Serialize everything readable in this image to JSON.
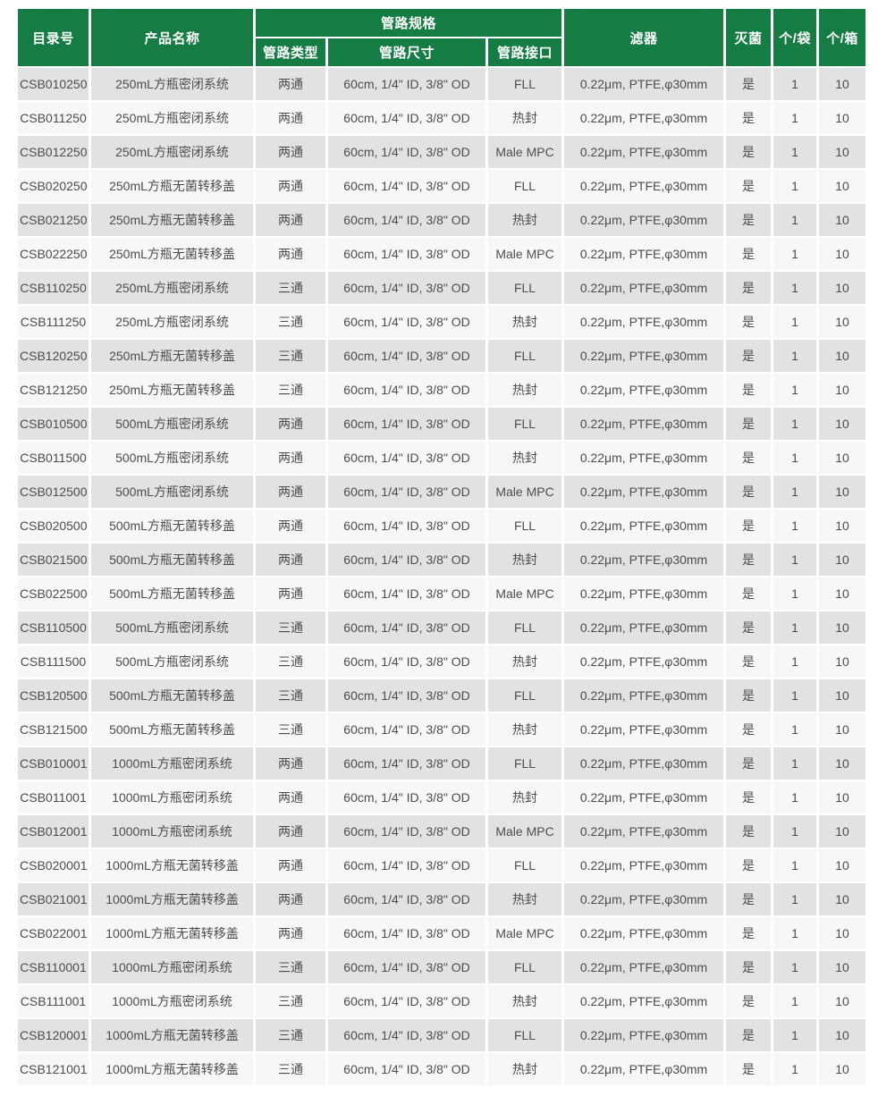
{
  "colors": {
    "header_green": "#157d43",
    "row_odd": "#e2e2e2",
    "row_even": "#f7f7f7",
    "body_text": "#4d4d4d",
    "header_text": "#ffffff"
  },
  "table": {
    "header": {
      "catalog": "目录号",
      "product_name": "产品名称",
      "tubing_spec_group": "管路规格",
      "tubing_type": "管路类型",
      "tubing_size": "管路尺寸",
      "tubing_interface": "管路接口",
      "filter": "滤器",
      "sterilized": "灭菌",
      "pcs_per_bag": "个/袋",
      "pcs_per_box": "个/箱"
    },
    "column_keys": [
      "catalog",
      "product-name",
      "tubing-type",
      "tubing-size",
      "tubing-interface",
      "filter",
      "sterilized",
      "pcs-per-bag",
      "pcs-per-box"
    ],
    "rows": [
      [
        "CSB010250",
        "250mL方瓶密闭系统",
        "两通",
        "60cm, 1/4\" ID, 3/8\" OD",
        "FLL",
        "0.22μm, PTFE,φ30mm",
        "是",
        "1",
        "10"
      ],
      [
        "CSB011250",
        "250mL方瓶密闭系统",
        "两通",
        "60cm, 1/4\" ID, 3/8\" OD",
        "热封",
        "0.22μm, PTFE,φ30mm",
        "是",
        "1",
        "10"
      ],
      [
        "CSB012250",
        "250mL方瓶密闭系统",
        "两通",
        "60cm, 1/4\" ID, 3/8\" OD",
        "Male MPC",
        "0.22μm, PTFE,φ30mm",
        "是",
        "1",
        "10"
      ],
      [
        "CSB020250",
        "250mL方瓶无菌转移盖",
        "两通",
        "60cm, 1/4\" ID, 3/8\" OD",
        "FLL",
        "0.22μm, PTFE,φ30mm",
        "是",
        "1",
        "10"
      ],
      [
        "CSB021250",
        "250mL方瓶无菌转移盖",
        "两通",
        "60cm, 1/4\" ID, 3/8\" OD",
        "热封",
        "0.22μm, PTFE,φ30mm",
        "是",
        "1",
        "10"
      ],
      [
        "CSB022250",
        "250mL方瓶无菌转移盖",
        "两通",
        "60cm, 1/4\" ID, 3/8\" OD",
        "Male MPC",
        "0.22μm, PTFE,φ30mm",
        "是",
        "1",
        "10"
      ],
      [
        "CSB110250",
        "250mL方瓶密闭系统",
        "三通",
        "60cm, 1/4\" ID, 3/8\" OD",
        "FLL",
        "0.22μm, PTFE,φ30mm",
        "是",
        "1",
        "10"
      ],
      [
        "CSB111250",
        "250mL方瓶密闭系统",
        "三通",
        "60cm, 1/4\" ID, 3/8\" OD",
        "热封",
        "0.22μm, PTFE,φ30mm",
        "是",
        "1",
        "10"
      ],
      [
        "CSB120250",
        "250mL方瓶无菌转移盖",
        "三通",
        "60cm, 1/4\" ID, 3/8\" OD",
        "FLL",
        "0.22μm, PTFE,φ30mm",
        "是",
        "1",
        "10"
      ],
      [
        "CSB121250",
        "250mL方瓶无菌转移盖",
        "三通",
        "60cm, 1/4\" ID, 3/8\" OD",
        "热封",
        "0.22μm, PTFE,φ30mm",
        "是",
        "1",
        "10"
      ],
      [
        "CSB010500",
        "500mL方瓶密闭系统",
        "两通",
        "60cm, 1/4\" ID, 3/8\" OD",
        "FLL",
        "0.22μm, PTFE,φ30mm",
        "是",
        "1",
        "10"
      ],
      [
        "CSB011500",
        "500mL方瓶密闭系统",
        "两通",
        "60cm, 1/4\" ID, 3/8\" OD",
        "热封",
        "0.22μm, PTFE,φ30mm",
        "是",
        "1",
        "10"
      ],
      [
        "CSB012500",
        "500mL方瓶密闭系统",
        "两通",
        "60cm, 1/4\" ID, 3/8\" OD",
        "Male MPC",
        "0.22μm, PTFE,φ30mm",
        "是",
        "1",
        "10"
      ],
      [
        "CSB020500",
        "500mL方瓶无菌转移盖",
        "两通",
        "60cm, 1/4\" ID, 3/8\" OD",
        "FLL",
        "0.22μm, PTFE,φ30mm",
        "是",
        "1",
        "10"
      ],
      [
        "CSB021500",
        "500mL方瓶无菌转移盖",
        "两通",
        "60cm, 1/4\" ID, 3/8\" OD",
        "热封",
        "0.22μm, PTFE,φ30mm",
        "是",
        "1",
        "10"
      ],
      [
        "CSB022500",
        "500mL方瓶无菌转移盖",
        "两通",
        "60cm, 1/4\" ID, 3/8\" OD",
        "Male MPC",
        "0.22μm, PTFE,φ30mm",
        "是",
        "1",
        "10"
      ],
      [
        "CSB110500",
        "500mL方瓶密闭系统",
        "三通",
        "60cm, 1/4\" ID, 3/8\" OD",
        "FLL",
        "0.22μm, PTFE,φ30mm",
        "是",
        "1",
        "10"
      ],
      [
        "CSB111500",
        "500mL方瓶密闭系统",
        "三通",
        "60cm, 1/4\" ID, 3/8\" OD",
        "热封",
        "0.22μm, PTFE,φ30mm",
        "是",
        "1",
        "10"
      ],
      [
        "CSB120500",
        "500mL方瓶无菌转移盖",
        "三通",
        "60cm, 1/4\" ID, 3/8\" OD",
        "FLL",
        "0.22μm, PTFE,φ30mm",
        "是",
        "1",
        "10"
      ],
      [
        "CSB121500",
        "500mL方瓶无菌转移盖",
        "三通",
        "60cm, 1/4\" ID, 3/8\" OD",
        "热封",
        "0.22μm, PTFE,φ30mm",
        "是",
        "1",
        "10"
      ],
      [
        "CSB010001",
        "1000mL方瓶密闭系统",
        "两通",
        "60cm, 1/4\" ID, 3/8\" OD",
        "FLL",
        "0.22μm, PTFE,φ30mm",
        "是",
        "1",
        "10"
      ],
      [
        "CSB011001",
        "1000mL方瓶密闭系统",
        "两通",
        "60cm, 1/4\" ID, 3/8\" OD",
        "热封",
        "0.22μm, PTFE,φ30mm",
        "是",
        "1",
        "10"
      ],
      [
        "CSB012001",
        "1000mL方瓶密闭系统",
        "两通",
        "60cm, 1/4\" ID, 3/8\" OD",
        "Male MPC",
        "0.22μm, PTFE,φ30mm",
        "是",
        "1",
        "10"
      ],
      [
        "CSB020001",
        "1000mL方瓶无菌转移盖",
        "两通",
        "60cm, 1/4\" ID, 3/8\" OD",
        "FLL",
        "0.22μm, PTFE,φ30mm",
        "是",
        "1",
        "10"
      ],
      [
        "CSB021001",
        "1000mL方瓶无菌转移盖",
        "两通",
        "60cm, 1/4\" ID, 3/8\" OD",
        "热封",
        "0.22μm, PTFE,φ30mm",
        "是",
        "1",
        "10"
      ],
      [
        "CSB022001",
        "1000mL方瓶无菌转移盖",
        "两通",
        "60cm, 1/4\" ID, 3/8\" OD",
        "Male MPC",
        "0.22μm, PTFE,φ30mm",
        "是",
        "1",
        "10"
      ],
      [
        "CSB110001",
        "1000mL方瓶密闭系统",
        "三通",
        "60cm, 1/4\" ID, 3/8\" OD",
        "FLL",
        "0.22μm, PTFE,φ30mm",
        "是",
        "1",
        "10"
      ],
      [
        "CSB111001",
        "1000mL方瓶密闭系统",
        "三通",
        "60cm, 1/4\" ID, 3/8\" OD",
        "热封",
        "0.22μm, PTFE,φ30mm",
        "是",
        "1",
        "10"
      ],
      [
        "CSB120001",
        "1000mL方瓶无菌转移盖",
        "三通",
        "60cm, 1/4\" ID, 3/8\" OD",
        "FLL",
        "0.22μm, PTFE,φ30mm",
        "是",
        "1",
        "10"
      ],
      [
        "CSB121001",
        "1000mL方瓶无菌转移盖",
        "三通",
        "60cm, 1/4\" ID, 3/8\" OD",
        "热封",
        "0.22μm, PTFE,φ30mm",
        "是",
        "1",
        "10"
      ]
    ]
  }
}
